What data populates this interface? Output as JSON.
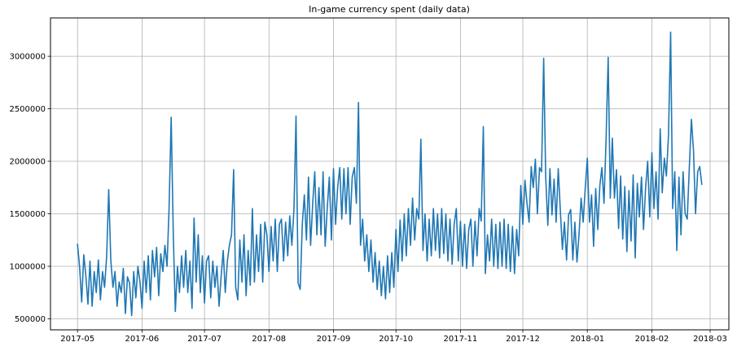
{
  "chart_data": {
    "type": "line",
    "title": "In-game currency spent (daily data)",
    "series_name": "daily in-game currency spent",
    "start_date": "2017-05-01",
    "x_tick_labels": [
      "2017-05",
      "2017-06",
      "2017-07",
      "2017-08",
      "2017-09",
      "2017-10",
      "2017-11",
      "2017-12",
      "2018-01",
      "2018-02",
      "2018-03"
    ],
    "x_tick_day_offsets": [
      0,
      31,
      61,
      92,
      123,
      153,
      184,
      214,
      245,
      276,
      304
    ],
    "y_ticks": [
      500000,
      1000000,
      1500000,
      2000000,
      2500000,
      3000000
    ],
    "xlim_days": [
      -13,
      313
    ],
    "ylim": [
      395000,
      3365000
    ],
    "grid": true,
    "legend": "none",
    "line_color": "#1f77b4",
    "grid_color": "#b0b0b0",
    "frame_color": "#000000",
    "values": [
      1210000,
      990000,
      660000,
      1110000,
      910000,
      640000,
      1050000,
      620000,
      950000,
      750000,
      1060000,
      680000,
      950000,
      800000,
      1100000,
      1730000,
      1050000,
      800000,
      950000,
      620000,
      850000,
      750000,
      980000,
      550000,
      900000,
      840000,
      530000,
      950000,
      700000,
      1000000,
      850000,
      600000,
      1050000,
      750000,
      1100000,
      680000,
      1150000,
      900000,
      1180000,
      720000,
      1120000,
      950000,
      1200000,
      1000000,
      1550000,
      2420000,
      1300000,
      570000,
      1000000,
      750000,
      1100000,
      800000,
      1150000,
      750000,
      1050000,
      600000,
      1460000,
      850000,
      1300000,
      750000,
      1100000,
      650000,
      1050000,
      1100000,
      700000,
      1050000,
      800000,
      1000000,
      620000,
      900000,
      1150000,
      750000,
      1050000,
      1200000,
      1300000,
      1920000,
      800000,
      680000,
      1250000,
      850000,
      1300000,
      720000,
      1150000,
      820000,
      1550000,
      850000,
      1300000,
      950000,
      1400000,
      850000,
      1420000,
      1300000,
      950000,
      1380000,
      1050000,
      1450000,
      950000,
      1400000,
      1450000,
      1050000,
      1420000,
      1100000,
      1480000,
      1200000,
      1550000,
      2430000,
      840000,
      780000,
      1400000,
      1680000,
      1250000,
      1850000,
      1200000,
      1600000,
      1900000,
      1300000,
      1750000,
      1300000,
      1900000,
      1190000,
      1550000,
      1850000,
      1250000,
      1930000,
      1400000,
      1750000,
      1940000,
      1450000,
      1930000,
      1500000,
      1940000,
      1400000,
      1850000,
      1940000,
      1600000,
      2560000,
      1200000,
      1450000,
      1050000,
      1300000,
      950000,
      1250000,
      850000,
      1130000,
      780000,
      1050000,
      720000,
      1000000,
      690000,
      1100000,
      750000,
      1130000,
      800000,
      1350000,
      950000,
      1440000,
      1050000,
      1500000,
      1100000,
      1550000,
      1200000,
      1650000,
      1250000,
      1550000,
      1450000,
      2210000,
      1150000,
      1500000,
      1050000,
      1450000,
      1100000,
      1550000,
      1150000,
      1500000,
      1080000,
      1550000,
      1120000,
      1500000,
      1050000,
      1450000,
      1020000,
      1400000,
      1550000,
      1050000,
      1430000,
      1000000,
      1400000,
      980000,
      1350000,
      1450000,
      1000000,
      1430000,
      1100000,
      1550000,
      1430000,
      2330000,
      930000,
      1300000,
      1050000,
      1450000,
      1000000,
      1400000,
      980000,
      1420000,
      1000000,
      1450000,
      980000,
      1400000,
      950000,
      1380000,
      930000,
      1350000,
      1100000,
      1770000,
      1400000,
      1820000,
      1600000,
      1420000,
      1950000,
      1750000,
      2020000,
      1500000,
      1940000,
      1900000,
      2980000,
      1850000,
      1390000,
      1930000,
      1490000,
      1830000,
      1420000,
      1930000,
      1540000,
      1160000,
      1420000,
      1060000,
      1490000,
      1540000,
      1060000,
      1420000,
      1040000,
      1300000,
      1650000,
      1420000,
      1750000,
      2030000,
      1420000,
      1680000,
      1190000,
      1740000,
      1350000,
      1770000,
      1940000,
      1600000,
      2200000,
      2990000,
      1650000,
      2220000,
      1650000,
      1920000,
      1360000,
      1860000,
      1260000,
      1760000,
      1140000,
      1720000,
      1240000,
      1870000,
      1080000,
      1790000,
      1470000,
      1850000,
      1350000,
      1750000,
      2000000,
      1470000,
      2080000,
      1550000,
      1900000,
      1450000,
      2310000,
      1700000,
      2030000,
      1860000,
      2250000,
      3230000,
      1550000,
      1900000,
      1150000,
      1850000,
      1300000,
      1900000,
      1500000,
      1450000,
      1950000,
      2400000,
      2100000,
      1500000,
      1900000,
      1950000,
      1780000
    ]
  }
}
